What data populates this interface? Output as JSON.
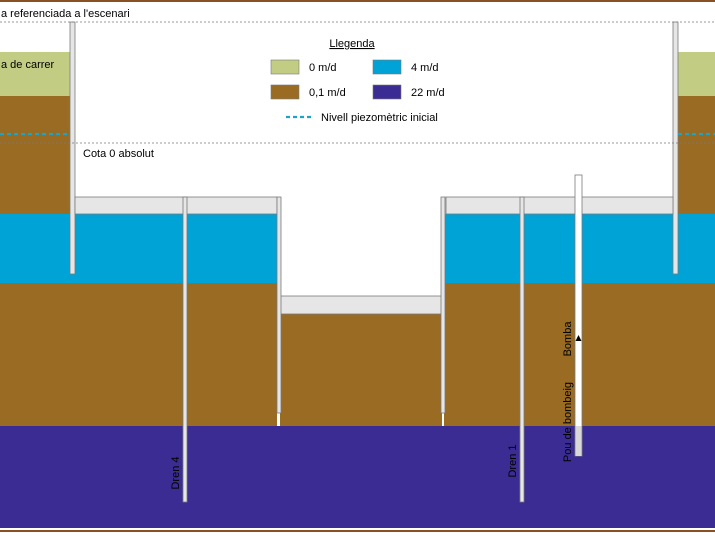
{
  "labels": {
    "top_reference": "a referenciada a l'escenari",
    "street_level": "a de carrer",
    "zero_level": "Cota 0 absolut",
    "pump": "Bomba",
    "pump_well": "Pou de bombeig",
    "drain_4": "Dren 4",
    "drain_1": "Dren 1"
  },
  "legend": {
    "title": "Llegenda",
    "items": [
      {
        "label": "0 m/d",
        "color": "#c2cd83"
      },
      {
        "label": "4 m/d",
        "color": "#00a3d6"
      },
      {
        "label": "0,1 m/d",
        "color": "#996b23"
      },
      {
        "label": "22 m/d",
        "color": "#3b2c93"
      }
    ],
    "piezometric_label": "Nivell piezomètric inicial",
    "piezometric_color": "#1ca4c6"
  },
  "colors": {
    "frame": "#8a4f22",
    "structure": "#e6e6e6",
    "outline": "#7a7a7a"
  }
}
